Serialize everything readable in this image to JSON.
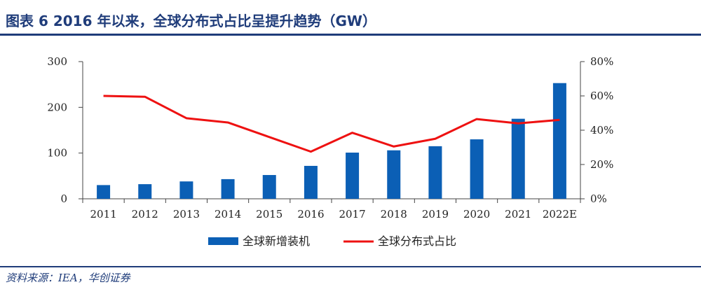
{
  "header": {
    "title": "图表 6  2016 年以来，全球分布式占比呈提升趋势（GW）"
  },
  "footer": {
    "source": "资料来源：IEA，华创证券"
  },
  "chart_data": {
    "type": "bar",
    "categories": [
      "2011",
      "2012",
      "2013",
      "2014",
      "2015",
      "2016",
      "2017",
      "2018",
      "2019",
      "2020",
      "2021",
      "2022E"
    ],
    "series": [
      {
        "name": "全球新增装机",
        "type": "bar",
        "axis": "left",
        "color": "#0b5fb5",
        "values": [
          30,
          32,
          38,
          43,
          52,
          72,
          101,
          106,
          115,
          130,
          175,
          253
        ]
      },
      {
        "name": "全球分布式占比",
        "type": "line",
        "axis": "right",
        "color": "#ee1111",
        "values": [
          60,
          59.5,
          47,
          44.5,
          36,
          27.5,
          38.5,
          30.5,
          35,
          46.5,
          44,
          46
        ]
      }
    ],
    "ylim": [
      0,
      300
    ],
    "yticks": [
      "0",
      "100",
      "200",
      "300"
    ],
    "y2lim": [
      0,
      80
    ],
    "y2ticks": [
      "0%",
      "20%",
      "40%",
      "60%",
      "80%"
    ],
    "grid": false,
    "legend_position": "bottom"
  }
}
